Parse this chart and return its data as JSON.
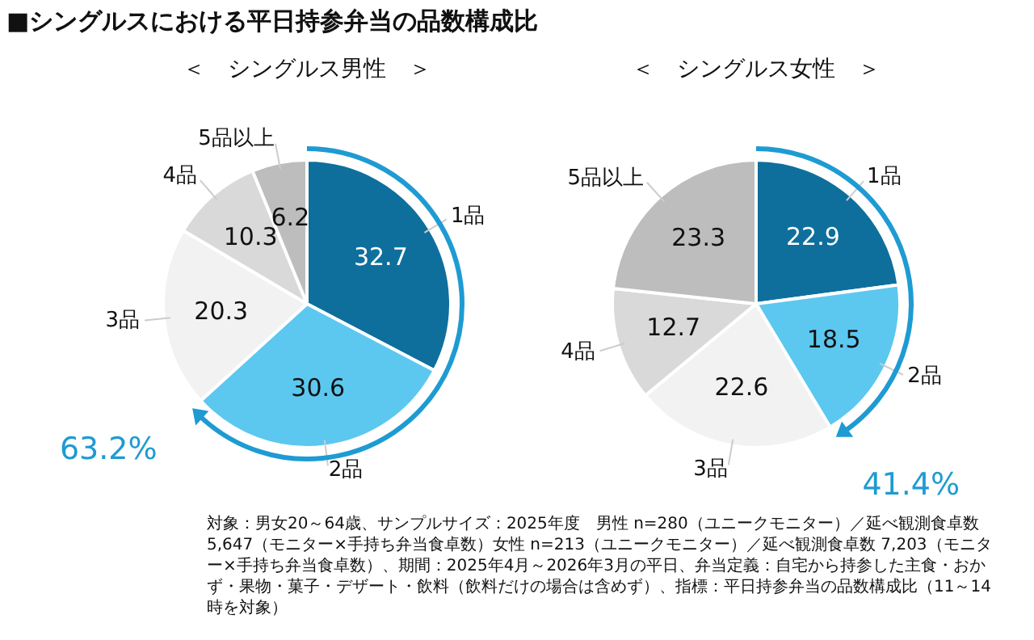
{
  "chart_data": [
    {
      "type": "pie",
      "title": "■シングルスにおける平日持参弁当の品数構成比",
      "subtitle": "＜　シングルス男性　＞",
      "categories": [
        "1品",
        "2品",
        "3品",
        "4品",
        "5品以上"
      ],
      "values": [
        32.7,
        30.6,
        20.3,
        10.3,
        6.2
      ],
      "colors": [
        "#0f6f9c",
        "#5cc8f0",
        "#f2f2f2",
        "#d9d9d9",
        "#bdbdbd"
      ],
      "data_labels": true,
      "legend": false,
      "annotations": [
        "63.2%",
        "対象：男女20～64歳、サンプルサイズ：2025年度　男性 n=280（ユニークモニター）／延べ観測食卓数 5,647（モニター×手持ち弁当食卓数）女性 n=213（ユニークモニター）／延べ観測食卓数 7,203（モニター×手持ち弁当食卓数）、期間：2025年4月～2026年3月の平日、弁当定義：自宅から持参した主食・おかず・果物・菓子・デザート・飲料（飲料だけの場合は含めず）、指標：平日持参弁当の品数構成比（11～14時を対象）"
      ]
    },
    {
      "type": "pie",
      "subtitle": "＜　シングルス女性　＞",
      "categories": [
        "1品",
        "2品",
        "3品",
        "4品",
        "5品以上"
      ],
      "values": [
        22.9,
        18.5,
        22.6,
        12.7,
        23.3
      ],
      "colors": [
        "#0f6f9c",
        "#5cc8f0",
        "#f2f2f2",
        "#d9d9d9",
        "#bdbdbd"
      ],
      "data_labels": true,
      "legend": false,
      "annotations": [
        "41.4%"
      ]
    }
  ]
}
